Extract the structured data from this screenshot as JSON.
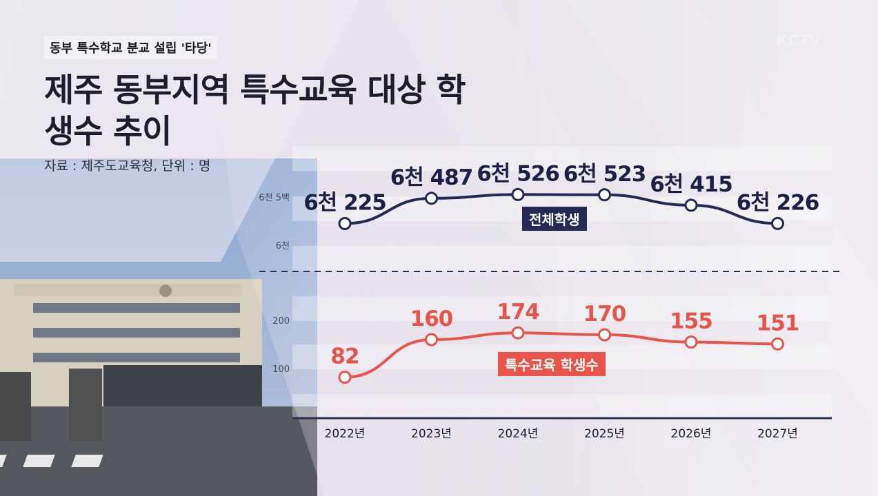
{
  "header": {
    "tag": "동부 특수학교 분교 설립 '타당'",
    "logo": "KCTV",
    "title": "제주 동부지역 특수교육 대상 학생수 추이",
    "source": "자료 : 제주도교육청, 단위 : 명"
  },
  "colors": {
    "total_line": "#232a55",
    "special_line": "#e8534a",
    "axis": "#2a2f55"
  },
  "chart_data": {
    "type": "line",
    "categories": [
      "2022년",
      "2023년",
      "2024년",
      "2025년",
      "2026년",
      "2027년"
    ],
    "series": [
      {
        "name": "전체학생",
        "values": [
          6225,
          6487,
          6526,
          6523,
          6415,
          6226
        ],
        "labels": [
          "6천 225",
          "6천 487",
          "6천 526",
          "6천 523",
          "6천 415",
          "6천 226"
        ],
        "y_ticks": [
          6000,
          6500
        ],
        "y_tick_labels": [
          "6천",
          "6천 5백"
        ]
      },
      {
        "name": "특수교육 학생수",
        "values": [
          82,
          160,
          174,
          170,
          155,
          151
        ],
        "labels": [
          "82",
          "160",
          "174",
          "170",
          "155",
          "151"
        ],
        "y_ticks": [
          100,
          200
        ],
        "y_tick_labels": [
          "100",
          "200"
        ]
      }
    ],
    "axis_break": true,
    "grid": "horizontal bands"
  }
}
